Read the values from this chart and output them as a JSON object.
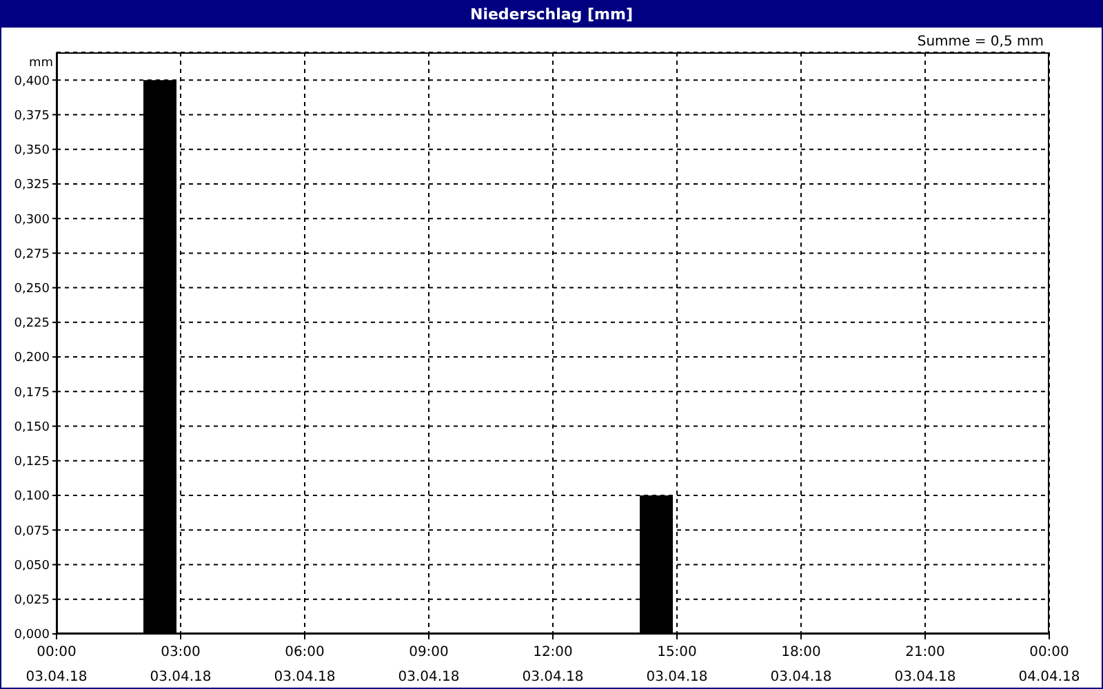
{
  "chart_data": {
    "type": "bar",
    "title": "Niederschlag [mm]",
    "ylabel": "mm",
    "annotations": [
      "Summe = 0,5 mm"
    ],
    "x": [
      "--04-03T02:30",
      "--04-03T14:30"
    ],
    "series": [
      {
        "color": "#000000",
        "values": [
          0.4,
          0.1
        ]
      }
    ],
    "xlim": [
      "--04-03T00:00",
      "--04-04T00:00"
    ],
    "xticks": [
      {
        "value": "--04-03T00:00",
        "label": "00:00\n03.04.18"
      },
      {
        "value": "--04-03T03:00",
        "label": "03:00\n03.04.18"
      },
      {
        "value": "--04-03T06:00",
        "label": "06:00\n03.04.18"
      },
      {
        "value": "--04-03T09:00",
        "label": "09:00\n03.04.18"
      },
      {
        "value": "--04-03T12:00",
        "label": "12:00\n03.04.18"
      },
      {
        "value": "--04-03T15:00",
        "label": "15:00\n03.04.18"
      },
      {
        "value": "--04-03T18:00",
        "label": "18:00\n03.04.18"
      },
      {
        "value": "--04-03T21:00",
        "label": "21:00\n03.04.18"
      },
      {
        "value": "--04-04T00:00",
        "label": "00:00\n04.04.18"
      }
    ],
    "ylim": [
      0,
      0.42
    ],
    "yticks": [
      {
        "value": 0,
        "label": "0,000"
      },
      {
        "value": 0.025,
        "label": "0,025"
      },
      {
        "value": 0.05,
        "label": "0,050"
      },
      {
        "value": 0.075,
        "label": "0,075"
      },
      {
        "value": 0.1,
        "label": "0,100"
      },
      {
        "value": 0.125,
        "label": "0,125"
      },
      {
        "value": 0.15,
        "label": "0,150"
      },
      {
        "value": 0.175,
        "label": "0,175"
      },
      {
        "value": 0.2,
        "label": "0,200"
      },
      {
        "value": 0.225,
        "label": "0,225"
      },
      {
        "value": 0.25,
        "label": "0,250"
      },
      {
        "value": 0.275,
        "label": "0,275"
      },
      {
        "value": 0.3,
        "label": "0,300"
      },
      {
        "value": 0.325,
        "label": "0,325"
      },
      {
        "value": 0.35,
        "label": "0,350"
      },
      {
        "value": 0.375,
        "label": "0,375"
      },
      {
        "value": 0.4,
        "label": "0,400"
      }
    ],
    "grid": true,
    "legend": false
  }
}
